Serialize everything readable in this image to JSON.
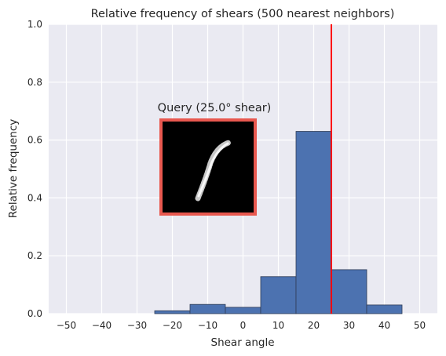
{
  "chart_data": {
    "type": "bar",
    "title": "Relative frequency of shears (500 nearest neighbors)",
    "xlabel": "Shear angle",
    "ylabel": "Relative frequency",
    "xlim": [
      -55,
      55
    ],
    "ylim": [
      0,
      1.0
    ],
    "xticks": [
      "−50",
      "−40",
      "−30",
      "−20",
      "−10",
      "0",
      "10",
      "20",
      "30",
      "40",
      "50"
    ],
    "xtick_values": [
      -50,
      -40,
      -30,
      -20,
      -10,
      0,
      10,
      20,
      30,
      40,
      50
    ],
    "yticks": [
      "0.0",
      "0.2",
      "0.4",
      "0.6",
      "0.8",
      "1.0"
    ],
    "ytick_values": [
      0.0,
      0.2,
      0.4,
      0.6,
      0.8,
      1.0
    ],
    "bins": [
      {
        "start": -25,
        "end": -15,
        "value": 0.01
      },
      {
        "start": -15,
        "end": -5,
        "value": 0.032
      },
      {
        "start": -5,
        "end": 5,
        "value": 0.022
      },
      {
        "start": 5,
        "end": 15,
        "value": 0.128
      },
      {
        "start": 15,
        "end": 25,
        "value": 0.63
      },
      {
        "start": 25,
        "end": 35,
        "value": 0.152
      },
      {
        "start": 35,
        "end": 45,
        "value": 0.03
      }
    ],
    "reference_line": {
      "x": 25,
      "color": "#ff0000"
    },
    "annotation": {
      "text": "Query (25.0° shear)"
    },
    "grid": true,
    "colors": {
      "bar": "#4c72b0",
      "bar_edge": "#2e3b55",
      "background": "#eaeaf2",
      "grid": "#ffffff",
      "inset_border": "#e8584f"
    }
  }
}
